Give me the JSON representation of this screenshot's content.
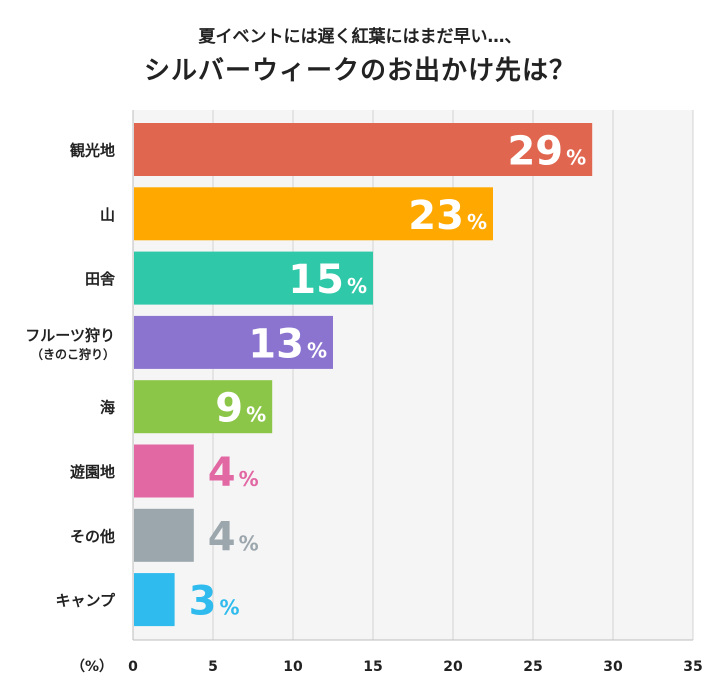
{
  "chart_data": {
    "type": "bar",
    "orientation": "horizontal",
    "title": "シルバーウィークのお出かけ先は？",
    "subtitle": "夏イベントには遅く紅葉にはまだ早い…、",
    "categories": [
      {
        "label": "観光地",
        "sublabel": ""
      },
      {
        "label": "山",
        "sublabel": ""
      },
      {
        "label": "田舎",
        "sublabel": ""
      },
      {
        "label": "フルーツ狩り",
        "sublabel": "（きのこ狩り）"
      },
      {
        "label": "海",
        "sublabel": ""
      },
      {
        "label": "遊園地",
        "sublabel": ""
      },
      {
        "label": "その他",
        "sublabel": ""
      },
      {
        "label": "キャンプ",
        "sublabel": ""
      }
    ],
    "values": [
      29,
      23,
      15,
      13,
      9,
      4,
      4,
      3
    ],
    "bar_lengths": [
      28.7,
      22.5,
      15,
      12.5,
      8.7,
      3.8,
      3.8,
      2.6
    ],
    "value_labels": [
      "29",
      "23",
      "15",
      "13",
      "9",
      "4",
      "4",
      "3"
    ],
    "value_suffix": "%",
    "colors": [
      "#e06650",
      "#fea800",
      "#2fc8a8",
      "#8b74d0",
      "#8cc648",
      "#e268a4",
      "#9ba6ad",
      "#2fbbed"
    ],
    "xlabel": "（%）",
    "xlim": [
      0,
      35
    ],
    "xticks": [
      0,
      5,
      10,
      15,
      20,
      25,
      30,
      35
    ],
    "grid": true,
    "plot_background": "#f5f5f5",
    "grid_color": "#d4d4d4",
    "text_color": "#222222"
  }
}
